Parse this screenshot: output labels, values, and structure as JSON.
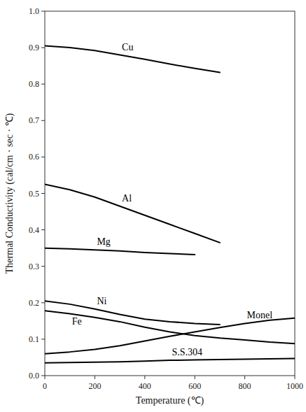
{
  "chart_data": {
    "type": "line",
    "xlabel": "Temperature (℃)",
    "ylabel": "Thermal Conductivity (cal/cm · sec · ℃)",
    "xlim": [
      0,
      1000
    ],
    "ylim": [
      0,
      1.0
    ],
    "xticks": [
      0,
      200,
      400,
      600,
      800,
      1000
    ],
    "yticks": [
      {
        "value": 0.0,
        "label": "0.0"
      },
      0.1,
      0.2,
      0.3,
      0.4,
      0.5,
      0.6,
      0.7,
      0.8,
      0.9,
      {
        "value": 1.0,
        "label": "1.0"
      }
    ],
    "grid": false,
    "series": [
      {
        "name": "Cu",
        "color": "#000000",
        "x": [
          0,
          100,
          200,
          300,
          400,
          500,
          600,
          700
        ],
        "values": [
          0.905,
          0.9,
          0.892,
          0.88,
          0.868,
          0.855,
          0.843,
          0.832
        ]
      },
      {
        "name": "Al",
        "color": "#000000",
        "x": [
          0,
          100,
          200,
          300,
          400,
          500,
          600,
          700
        ],
        "values": [
          0.525,
          0.51,
          0.49,
          0.465,
          0.44,
          0.415,
          0.39,
          0.365
        ]
      },
      {
        "name": "Mg",
        "color": "#000000",
        "x": [
          0,
          100,
          200,
          300,
          400,
          500,
          600
        ],
        "values": [
          0.35,
          0.348,
          0.345,
          0.342,
          0.338,
          0.335,
          0.332
        ]
      },
      {
        "name": "Ni",
        "color": "#000000",
        "x": [
          0,
          100,
          200,
          300,
          400,
          500,
          600,
          700
        ],
        "values": [
          0.205,
          0.196,
          0.183,
          0.168,
          0.155,
          0.148,
          0.143,
          0.14
        ]
      },
      {
        "name": "Fe",
        "color": "#000000",
        "x": [
          0,
          100,
          200,
          300,
          400,
          500,
          600,
          700,
          800,
          900,
          1000
        ],
        "values": [
          0.178,
          0.17,
          0.16,
          0.148,
          0.133,
          0.12,
          0.11,
          0.103,
          0.098,
          0.092,
          0.088
        ]
      },
      {
        "name": "Monel",
        "color": "#000000",
        "x": [
          0,
          100,
          200,
          300,
          400,
          500,
          600,
          700,
          800,
          900,
          1000
        ],
        "values": [
          0.06,
          0.065,
          0.072,
          0.082,
          0.095,
          0.108,
          0.12,
          0.132,
          0.143,
          0.152,
          0.158
        ]
      },
      {
        "name": "S.S.304",
        "color": "#000000",
        "x": [
          0,
          100,
          200,
          300,
          400,
          500,
          600,
          700,
          800,
          900,
          1000
        ],
        "values": [
          0.035,
          0.036,
          0.037,
          0.038,
          0.04,
          0.042,
          0.043,
          0.044,
          0.045,
          0.046,
          0.047
        ]
      }
    ]
  }
}
